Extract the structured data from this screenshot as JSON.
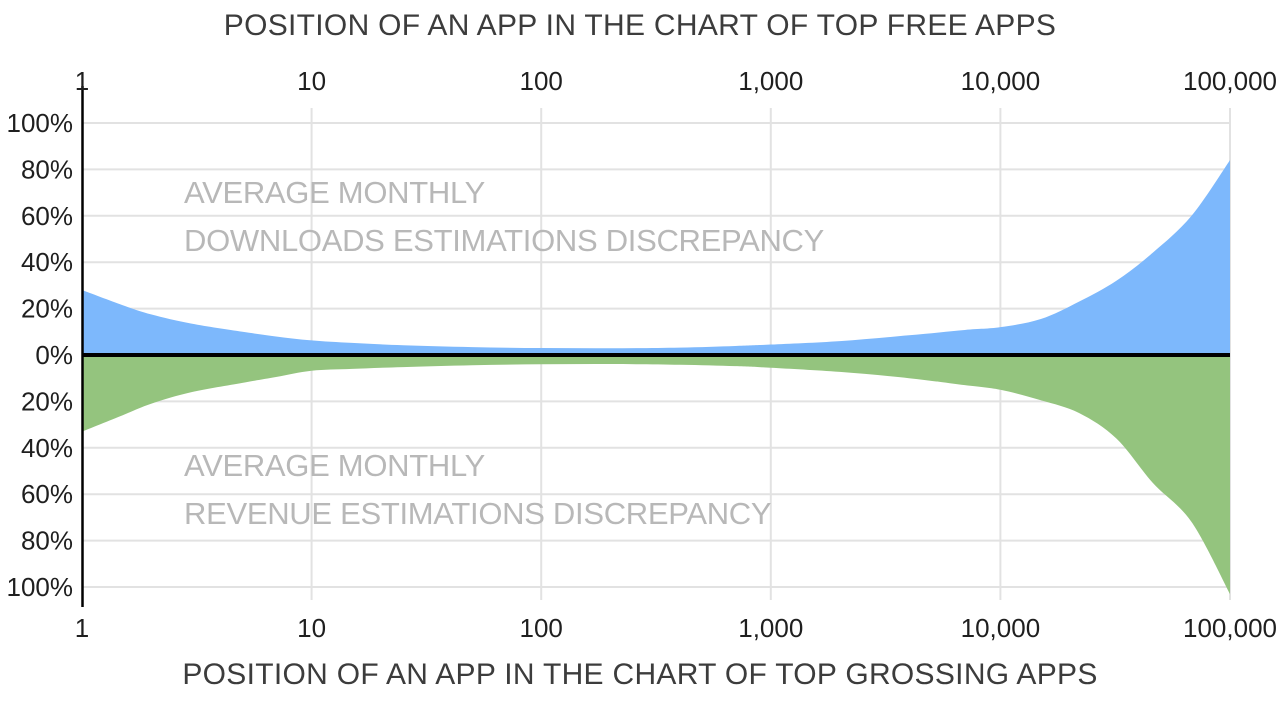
{
  "titles": {
    "top": "POSITION OF AN APP IN THE CHART OF TOP FREE APPS",
    "bottom": "POSITION OF AN APP IN THE CHART OF TOP GROSSING APPS"
  },
  "chart_data": {
    "type": "area",
    "x_scale": "log",
    "x_axis_top_title": "POSITION OF AN APP IN THE CHART OF TOP FREE APPS",
    "x_axis_bottom_title": "POSITION OF AN APP IN THE CHART OF TOP GROSSING APPS",
    "x_ticks": {
      "values": [
        1,
        10,
        100,
        1000,
        10000,
        100000
      ],
      "labels": [
        "1",
        "10",
        "100",
        "1,000",
        "10,000",
        "100,000"
      ]
    },
    "y_axis": {
      "unit": "%",
      "step_pct": 20,
      "max_pct": 100,
      "mirrored": true,
      "grid": true,
      "labels_top_to_bottom": [
        "100%",
        "80%",
        "60%",
        "40%",
        "20%",
        "0%",
        "20%",
        "40%",
        "60%",
        "80%",
        "100%"
      ]
    },
    "series": [
      {
        "id": "downloads-discrepancy",
        "label_lines": [
          "AVERAGE MONTHLY",
          "DOWNLOADS ESTIMATIONS DISCREPANCY"
        ],
        "side": "above",
        "fill": "#7db8fc",
        "points_rank_pct": [
          [
            1,
            28
          ],
          [
            1.5,
            21.5
          ],
          [
            2,
            17.5
          ],
          [
            3,
            13.5
          ],
          [
            5,
            10
          ],
          [
            7,
            8
          ],
          [
            10,
            6.3
          ],
          [
            15,
            5.2
          ],
          [
            25,
            4.2
          ],
          [
            50,
            3.4
          ],
          [
            100,
            3
          ],
          [
            200,
            2.9
          ],
          [
            400,
            3.2
          ],
          [
            700,
            3.9
          ],
          [
            1000,
            4.5
          ],
          [
            2000,
            6
          ],
          [
            4000,
            8.5
          ],
          [
            7000,
            10.8
          ],
          [
            10000,
            12
          ],
          [
            15000,
            15.5
          ],
          [
            22000,
            23
          ],
          [
            32000,
            32
          ],
          [
            46000,
            44
          ],
          [
            68000,
            60
          ],
          [
            100000,
            84
          ]
        ]
      },
      {
        "id": "revenue-discrepancy",
        "label_lines": [
          "AVERAGE MONTHLY",
          "REVENUE ESTIMATIONS DISCREPANCY"
        ],
        "side": "below",
        "fill": "#94c47e",
        "points_rank_pct": [
          [
            1,
            33
          ],
          [
            1.5,
            26
          ],
          [
            2,
            21
          ],
          [
            3,
            16
          ],
          [
            5,
            12
          ],
          [
            7,
            9.5
          ],
          [
            10,
            6.8
          ],
          [
            15,
            6
          ],
          [
            25,
            5.2
          ],
          [
            50,
            4.4
          ],
          [
            100,
            4
          ],
          [
            200,
            3.9
          ],
          [
            400,
            4.2
          ],
          [
            700,
            4.8
          ],
          [
            1000,
            5.5
          ],
          [
            2000,
            7.3
          ],
          [
            4000,
            10
          ],
          [
            7000,
            13
          ],
          [
            10000,
            15
          ],
          [
            15000,
            19.5
          ],
          [
            22000,
            25
          ],
          [
            32000,
            36
          ],
          [
            46000,
            55
          ],
          [
            68000,
            72
          ],
          [
            100000,
            103
          ]
        ]
      }
    ],
    "colors": {
      "grid": "#e2e2e2",
      "axis": "#000000",
      "zero_line": "#000000",
      "tick_text": "#1f1f1f",
      "title_text": "#3c3c3c",
      "series_label_text": "#b8b8b8",
      "background": "#ffffff"
    }
  }
}
